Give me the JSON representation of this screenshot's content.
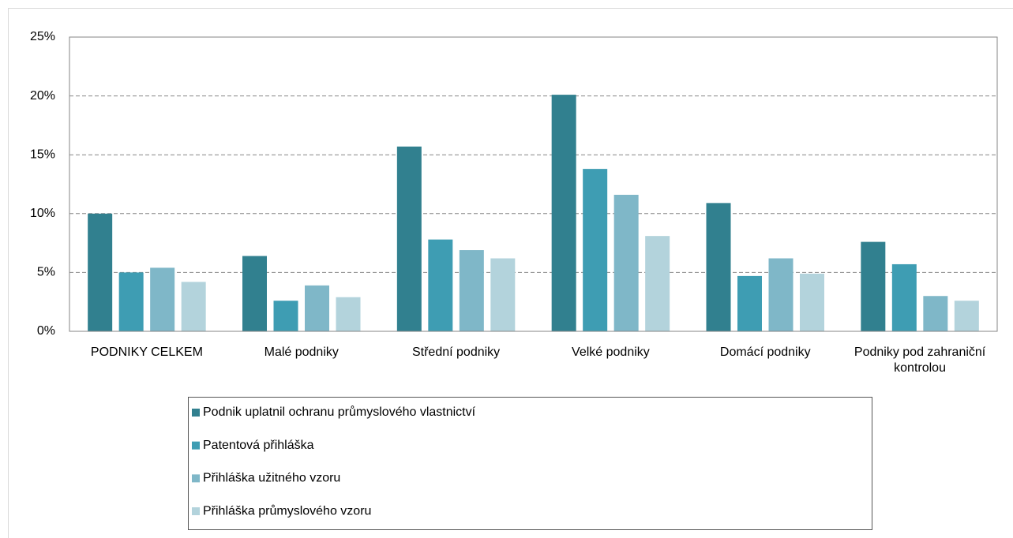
{
  "chart_data": {
    "type": "bar",
    "categories": [
      "PODNIKY CELKEM",
      "Malé podniky",
      "Střední podniky",
      "Velké podniky",
      "Domácí podniky",
      "Podniky pod zahraniční kontrolou"
    ],
    "series": [
      {
        "name": "Podnik uplatnil ochranu průmyslového vlastnictví",
        "color": "#31808f",
        "values": [
          10.0,
          6.4,
          15.7,
          20.1,
          10.9,
          7.6
        ]
      },
      {
        "name": "Patentová přihláška",
        "color": "#3e9db3",
        "values": [
          5.0,
          2.6,
          7.8,
          13.8,
          4.7,
          5.7
        ]
      },
      {
        "name": "Přihláška užitného vzoru",
        "color": "#7fb7c8",
        "values": [
          5.4,
          3.9,
          6.9,
          11.6,
          6.2,
          3.0
        ]
      },
      {
        "name": "Přihláška průmyslového vzoru",
        "color": "#b3d3dc",
        "values": [
          4.2,
          2.9,
          6.2,
          8.1,
          4.9,
          2.6
        ]
      }
    ],
    "ylim": [
      0,
      25
    ],
    "yticks": [
      {
        "value": 0,
        "label": "0%"
      },
      {
        "value": 5,
        "label": "5%"
      },
      {
        "value": 10,
        "label": "10%"
      },
      {
        "value": 15,
        "label": "15%"
      },
      {
        "value": 20,
        "label": "20%"
      },
      {
        "value": 25,
        "label": "25%"
      }
    ],
    "grid": true,
    "legend": "bottom"
  }
}
